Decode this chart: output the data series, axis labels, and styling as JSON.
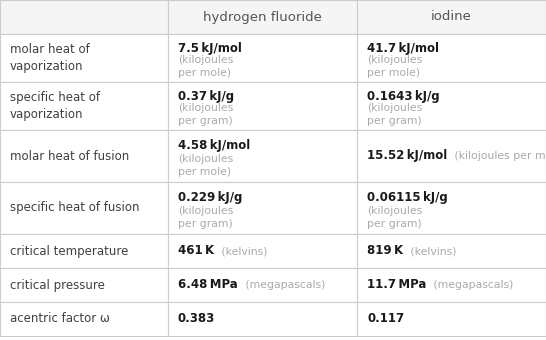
{
  "col_headers": [
    "",
    "hydrogen fluoride",
    "iodine"
  ],
  "rows": [
    {
      "label": "molar heat of\nvaporization",
      "hf_bold": "7.5 kJ/mol",
      "hf_light": "(kilojoules\nper mole)",
      "iodine_bold": "41.7 kJ/mol",
      "iodine_light": "(kilojoules\nper mole)"
    },
    {
      "label": "specific heat of\nvaporization",
      "hf_bold": "0.37 kJ/g",
      "hf_light": "(kilojoules\nper gram)",
      "iodine_bold": "0.1643 kJ/g",
      "iodine_light": "(kilojoules\nper gram)"
    },
    {
      "label": "molar heat of fusion",
      "hf_bold": "4.58 kJ/mol",
      "hf_light": "(kilojoules\nper mole)",
      "iodine_bold": "15.52 kJ/mol",
      "iodine_light": "(kilojoules per mole)"
    },
    {
      "label": "specific heat of fusion",
      "hf_bold": "0.229 kJ/g",
      "hf_light": "(kilojoules\nper gram)",
      "iodine_bold": "0.06115 kJ/g",
      "iodine_light": "(kilojoules\nper gram)"
    },
    {
      "label": "critical temperature",
      "hf_bold": "461 K",
      "hf_light": "(kelvins)",
      "iodine_bold": "819 K",
      "iodine_light": "(kelvins)"
    },
    {
      "label": "critical pressure",
      "hf_bold": "6.48 MPa",
      "hf_light": "(megapascals)",
      "iodine_bold": "11.7 MPa",
      "iodine_light": "(megapascals)"
    },
    {
      "label": "acentric factor ω",
      "hf_bold": "0.383",
      "hf_light": "",
      "iodine_bold": "0.117",
      "iodine_light": ""
    }
  ],
  "border_color": "#cccccc",
  "header_bg": "#f5f5f5",
  "row_bg": "#ffffff",
  "text_label": "#404040",
  "text_bold": "#1a1a1a",
  "text_light": "#aaaaaa",
  "text_header": "#555555",
  "fig_width": 5.46,
  "fig_height": 3.4,
  "dpi": 100
}
